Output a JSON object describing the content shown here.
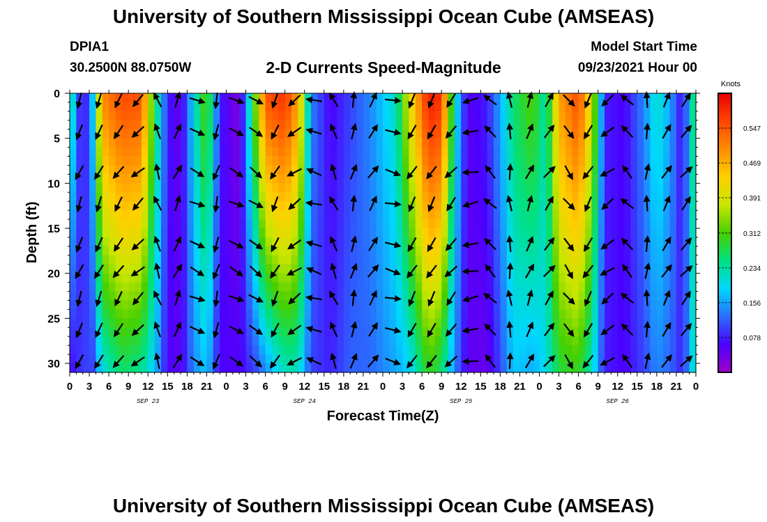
{
  "header": {
    "title": "University of Southern Mississippi Ocean Cube (AMSEAS)",
    "station": "DPIA1",
    "coords": "30.2500N  88.0750W",
    "plot_title": "2-D Currents Speed-Magnitude",
    "model_label": "Model Start Time",
    "model_time": "09/23/2021 Hour 00"
  },
  "footer": {
    "title": "University of Southern Mississippi Ocean Cube (AMSEAS)"
  },
  "chart_data": {
    "type": "heatmap",
    "xlabel": "Forecast Time(Z)",
    "ylabel": "Depth (ft)",
    "x_ticks": [
      "0",
      "3",
      "6",
      "9",
      "12",
      "15",
      "18",
      "21",
      "0",
      "3",
      "6",
      "9",
      "12",
      "15",
      "18",
      "21",
      "0",
      "3",
      "6",
      "9",
      "12",
      "15",
      "18",
      "21",
      "0",
      "3",
      "6",
      "9",
      "12",
      "15",
      "18",
      "21",
      "0"
    ],
    "date_labels": [
      {
        "label": "SEP 23",
        "hour": 12
      },
      {
        "label": "SEP 24",
        "hour": 36
      },
      {
        "label": "SEP 25",
        "hour": 60
      },
      {
        "label": "SEP 26",
        "hour": 84
      }
    ],
    "xlim_hours": [
      0,
      96
    ],
    "ylim_depth_ft": [
      0,
      31
    ],
    "y_ticks": [
      0,
      5,
      10,
      15,
      20,
      25,
      30
    ],
    "colorbar": {
      "title": "Knots",
      "ticks": [
        "0.547",
        "0.469",
        "0.391",
        "0.312",
        "0.234",
        "0.156",
        "0.078"
      ],
      "range": [
        0,
        0.625
      ],
      "colors": [
        "#a000c8",
        "#4b00ff",
        "#2a6dff",
        "#00d7ff",
        "#00e080",
        "#46d000",
        "#c8e600",
        "#ffd000",
        "#ff8c00",
        "#ff4500",
        "#e60000"
      ]
    },
    "speed_profile": [
      {
        "hour": 0,
        "top": 0.26,
        "bottom": 0.06
      },
      {
        "hour": 2,
        "top": 0.04,
        "bottom": 0.1
      },
      {
        "hour": 3.5,
        "top": 0.18,
        "bottom": 0.1
      },
      {
        "hour": 5,
        "top": 0.5,
        "bottom": 0.2
      },
      {
        "hour": 8,
        "top": 0.56,
        "bottom": 0.26
      },
      {
        "hour": 11,
        "top": 0.55,
        "bottom": 0.24
      },
      {
        "hour": 13,
        "top": 0.28,
        "bottom": 0.18
      },
      {
        "hour": 15,
        "top": 0.08,
        "bottom": 0.06
      },
      {
        "hour": 17,
        "top": 0.04,
        "bottom": 0.05
      },
      {
        "hour": 19,
        "top": 0.2,
        "bottom": 0.14
      },
      {
        "hour": 21,
        "top": 0.33,
        "bottom": 0.18
      },
      {
        "hour": 23,
        "top": 0.08,
        "bottom": 0.06
      },
      {
        "hour": 26,
        "top": 0.02,
        "bottom": 0.06
      },
      {
        "hour": 28.5,
        "top": 0.34,
        "bottom": 0.1
      },
      {
        "hour": 30,
        "top": 0.55,
        "bottom": 0.14
      },
      {
        "hour": 33,
        "top": 0.58,
        "bottom": 0.22
      },
      {
        "hour": 35,
        "top": 0.48,
        "bottom": 0.22
      },
      {
        "hour": 37,
        "top": 0.14,
        "bottom": 0.1
      },
      {
        "hour": 40,
        "top": 0.06,
        "bottom": 0.08
      },
      {
        "hour": 43,
        "top": 0.1,
        "bottom": 0.12
      },
      {
        "hour": 46,
        "top": 0.14,
        "bottom": 0.12
      },
      {
        "hour": 50,
        "top": 0.22,
        "bottom": 0.16
      },
      {
        "hour": 52,
        "top": 0.4,
        "bottom": 0.18
      },
      {
        "hour": 55,
        "top": 0.6,
        "bottom": 0.3
      },
      {
        "hour": 57,
        "top": 0.58,
        "bottom": 0.26
      },
      {
        "hour": 59,
        "top": 0.22,
        "bottom": 0.14
      },
      {
        "hour": 61,
        "top": 0.05,
        "bottom": 0.05
      },
      {
        "hour": 64,
        "top": 0.08,
        "bottom": 0.04
      },
      {
        "hour": 66,
        "top": 0.16,
        "bottom": 0.1
      },
      {
        "hour": 68,
        "top": 0.26,
        "bottom": 0.18
      },
      {
        "hour": 71,
        "top": 0.32,
        "bottom": 0.16
      },
      {
        "hour": 73,
        "top": 0.22,
        "bottom": 0.2
      },
      {
        "hour": 75,
        "top": 0.48,
        "bottom": 0.28
      },
      {
        "hour": 78,
        "top": 0.56,
        "bottom": 0.3
      },
      {
        "hour": 80,
        "top": 0.4,
        "bottom": 0.22
      },
      {
        "hour": 82,
        "top": 0.08,
        "bottom": 0.08
      },
      {
        "hour": 85,
        "top": 0.06,
        "bottom": 0.06
      },
      {
        "hour": 88,
        "top": 0.14,
        "bottom": 0.1
      },
      {
        "hour": 90,
        "top": 0.22,
        "bottom": 0.14
      },
      {
        "hour": 92,
        "top": 0.16,
        "bottom": 0.12
      },
      {
        "hour": 94,
        "top": 0.06,
        "bottom": 0.08
      },
      {
        "hour": 96,
        "top": 0.3,
        "bottom": 0.24
      }
    ],
    "vector_depths_ft": [
      0,
      3.5,
      8,
      11.5,
      16,
      19,
      22,
      25.5,
      29
    ],
    "vector_direction_profile": [
      {
        "hour": 0,
        "deg": 200
      },
      {
        "hour": 5,
        "deg": 205
      },
      {
        "hour": 8,
        "deg": 215
      },
      {
        "hour": 12,
        "deg": 235
      },
      {
        "hour": 14,
        "deg": 15
      },
      {
        "hour": 18,
        "deg": 30
      },
      {
        "hour": 21,
        "deg": 200
      },
      {
        "hour": 24,
        "deg": 190
      },
      {
        "hour": 27,
        "deg": 45
      },
      {
        "hour": 30,
        "deg": 205
      },
      {
        "hour": 33,
        "deg": 210
      },
      {
        "hour": 36,
        "deg": 260
      },
      {
        "hour": 40,
        "deg": 330
      },
      {
        "hour": 44,
        "deg": 20
      },
      {
        "hour": 48,
        "deg": 40
      },
      {
        "hour": 52,
        "deg": 210
      },
      {
        "hour": 57,
        "deg": 210
      },
      {
        "hour": 60,
        "deg": 230
      },
      {
        "hour": 63,
        "deg": 290
      },
      {
        "hour": 66,
        "deg": 340
      },
      {
        "hour": 70,
        "deg": 20
      },
      {
        "hour": 74,
        "deg": 40
      },
      {
        "hour": 78,
        "deg": 205
      },
      {
        "hour": 82,
        "deg": 220
      },
      {
        "hour": 86,
        "deg": 330
      },
      {
        "hour": 90,
        "deg": 25
      },
      {
        "hour": 96,
        "deg": 45
      }
    ]
  }
}
